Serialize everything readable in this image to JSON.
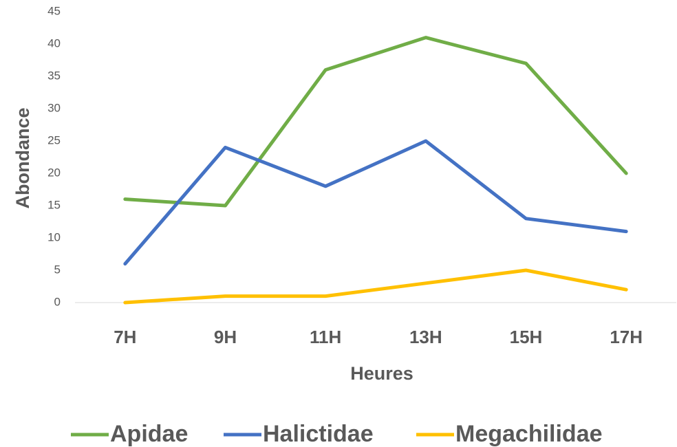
{
  "chart_data": {
    "type": "line",
    "categories": [
      "7H",
      "9H",
      "11H",
      "13H",
      "15H",
      "17H"
    ],
    "series": [
      {
        "name": "Apidae",
        "color": "#70ad47",
        "values": [
          16,
          15,
          36,
          41,
          37,
          20
        ]
      },
      {
        "name": "Halictidae",
        "color": "#4472c4",
        "values": [
          6,
          24,
          18,
          25,
          13,
          11
        ]
      },
      {
        "name": "Megachilidae",
        "color": "#ffc000",
        "values": [
          0,
          1,
          1,
          3,
          5,
          2
        ]
      }
    ],
    "ylim": [
      0,
      45
    ],
    "yticks": [
      0,
      5,
      10,
      15,
      20,
      25,
      30,
      35,
      40,
      45
    ],
    "y_label": "Abondance",
    "x_label": "Heures",
    "grid": false,
    "legend": "bottom"
  }
}
